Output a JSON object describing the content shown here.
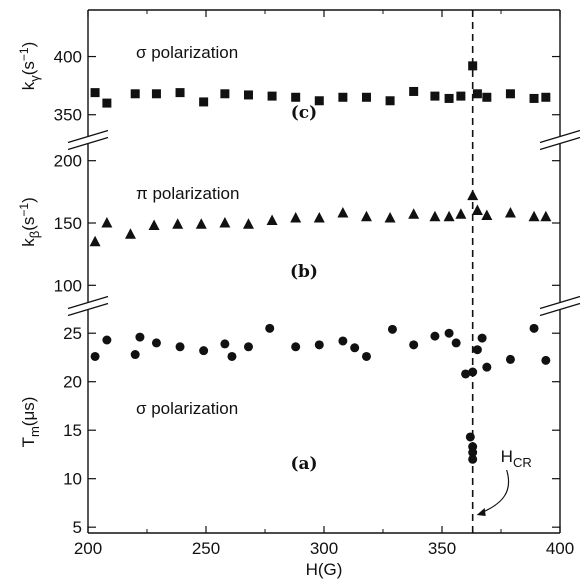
{
  "chart_data": [
    {
      "panel": "c",
      "type": "scatter",
      "marker": "square",
      "panel_label": "(c)",
      "annotation": "σ polarization",
      "ylabel": "kγ(s⁻¹)",
      "ylabel_base": "k",
      "ylabel_sub": "γ",
      "ylabel_unit": "(s",
      "ylabel_sup": "−1",
      "ylabel_close": ")",
      "ylim": [
        330,
        440
      ],
      "yticks": [
        350,
        400
      ],
      "x": [
        203,
        208,
        220,
        229,
        239,
        249,
        258,
        268,
        278,
        288,
        298,
        308,
        318,
        328,
        338,
        347,
        353,
        358,
        363,
        365,
        369,
        379,
        389,
        394
      ],
      "y": [
        369,
        360,
        368,
        368,
        369,
        361,
        368,
        367,
        366,
        365,
        362,
        365,
        365,
        362,
        370,
        366,
        364,
        366,
        392,
        368,
        365,
        368,
        364,
        365
      ]
    },
    {
      "panel": "b",
      "type": "scatter",
      "marker": "triangle",
      "panel_label": "(b)",
      "annotation": "π polarization",
      "ylabel": "kβ(s⁻¹)",
      "ylabel_base": "k",
      "ylabel_sub": "β",
      "ylabel_unit": "(s",
      "ylabel_sup": "−1",
      "ylabel_close": ")",
      "ylim": [
        85,
        215
      ],
      "yticks": [
        100,
        150,
        200
      ],
      "x": [
        203,
        208,
        218,
        228,
        238,
        248,
        258,
        268,
        278,
        288,
        298,
        308,
        318,
        328,
        338,
        347,
        353,
        358,
        363,
        365,
        369,
        379,
        389,
        394
      ],
      "y": [
        135,
        150,
        141,
        148,
        149,
        149,
        150,
        149,
        152,
        154,
        154,
        158,
        155,
        154,
        157,
        155,
        155,
        157,
        172,
        160,
        156,
        158,
        155,
        155
      ]
    },
    {
      "panel": "a",
      "type": "scatter",
      "marker": "circle",
      "panel_label": "(a)",
      "annotation": "σ polarization",
      "ylabel": "Tm(μs)",
      "ylabel_base": "T",
      "ylabel_sub": "m",
      "ylabel_unit": "(μs)",
      "xlabel": "H(G)",
      "ylim": [
        4.4,
        27.6
      ],
      "yticks": [
        5,
        10,
        15,
        20,
        25
      ],
      "xlim": [
        200,
        400
      ],
      "xticks": [
        200,
        250,
        300,
        350,
        400
      ],
      "x": [
        203,
        208,
        220,
        222,
        229,
        239,
        249,
        258,
        261,
        268,
        277,
        288,
        298,
        308,
        313,
        318,
        329,
        338,
        347,
        353,
        356,
        360,
        362,
        363,
        363,
        363,
        363,
        365,
        367,
        369,
        379,
        389,
        394
      ],
      "y": [
        22.6,
        24.3,
        22.8,
        24.6,
        24.0,
        23.6,
        23.2,
        23.9,
        22.6,
        23.6,
        25.5,
        23.6,
        23.8,
        24.2,
        23.5,
        22.6,
        25.4,
        23.8,
        24.7,
        25.0,
        24.0,
        20.8,
        14.3,
        13.3,
        12.7,
        12.0,
        21.0,
        23.3,
        24.5,
        21.5,
        22.3,
        25.5,
        22.2
      ]
    }
  ],
  "annotations": {
    "hcr_base": "H",
    "hcr_sub": "CR",
    "hcr_x": 363
  }
}
